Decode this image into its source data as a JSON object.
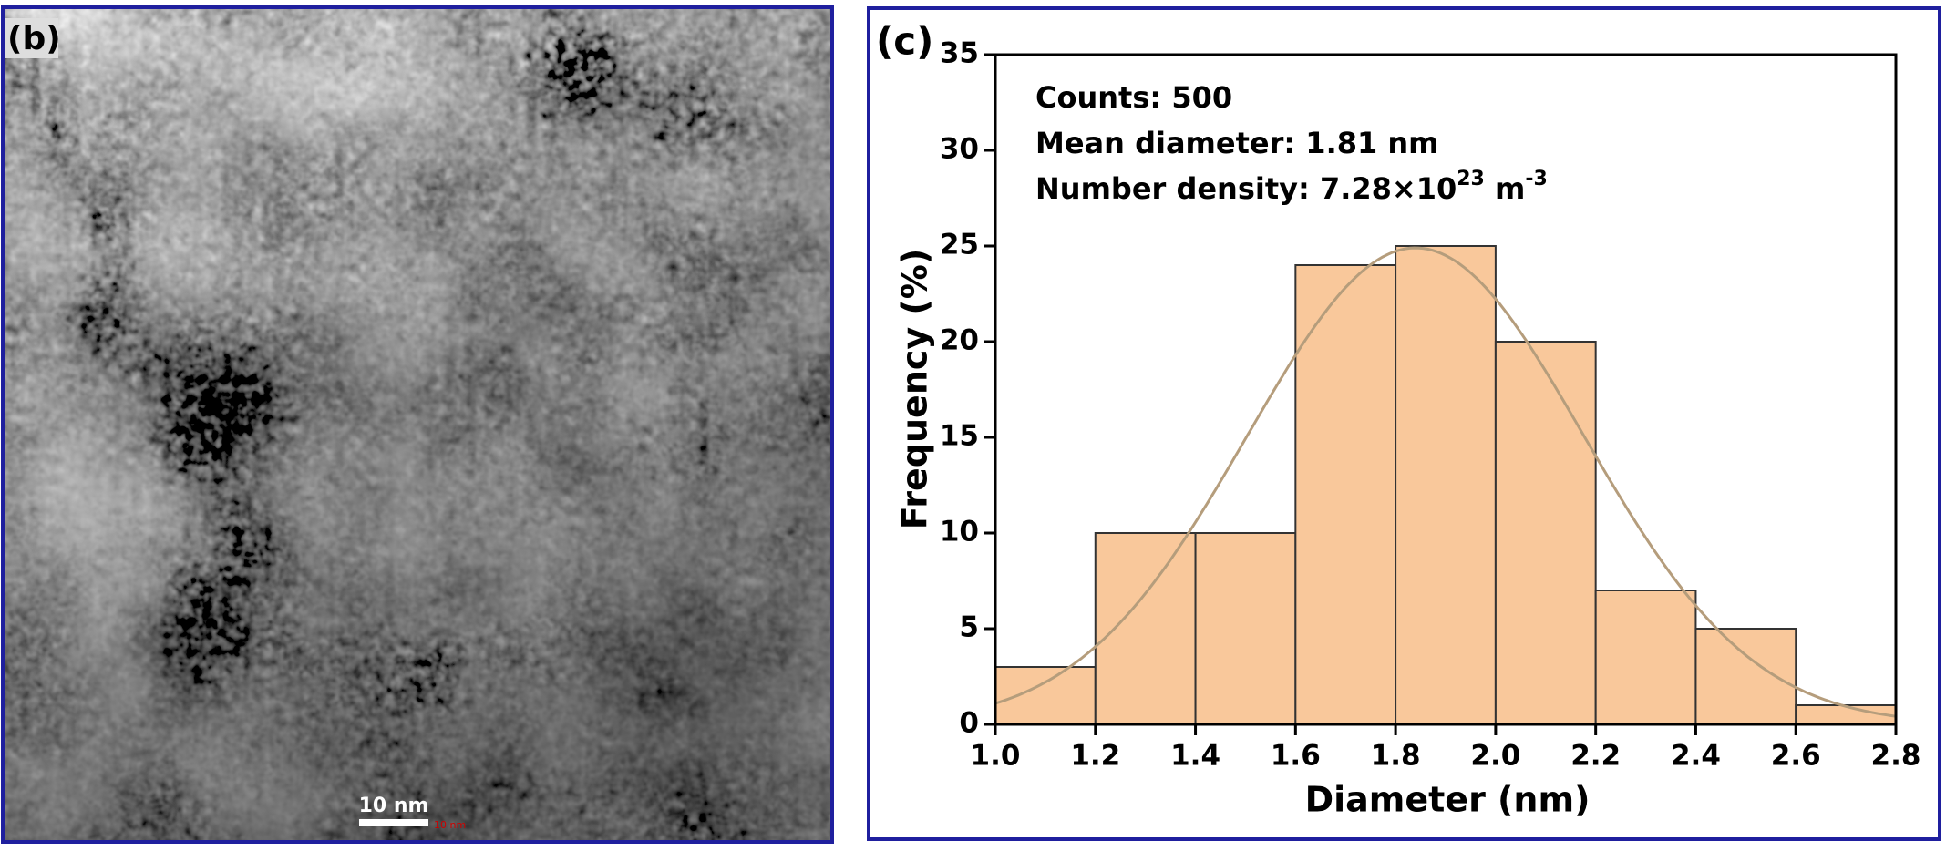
{
  "image_panel": {
    "label": "(b)",
    "scale_bar": "10 nm",
    "scale_bar_small": "10 nm"
  },
  "chart_data": {
    "type": "histogram",
    "panel_label": "(c)",
    "x_label": "Diameter (nm)",
    "y_label": "Frequency (%)",
    "annotations": [
      "Counts: 500",
      "Mean diameter: 1.81 nm",
      [
        "Number density: 7.28×10",
        "23",
        " m",
        "-3"
      ]
    ],
    "bins": [
      1.0,
      1.2,
      1.4,
      1.6,
      1.8,
      2.0,
      2.2,
      2.4,
      2.6,
      2.8
    ],
    "values": [
      3,
      10,
      10,
      24,
      25,
      20,
      7,
      5,
      1
    ],
    "color": "#f9c89b",
    "edge_color": "#333333",
    "fit": {
      "type": "gaussian",
      "center": 1.84,
      "sigma": 0.336,
      "amplitude": 24.9,
      "color": "#b59d7c"
    },
    "xlim": [
      1.0,
      2.8
    ],
    "xticks": [
      {
        "value": 1.0,
        "label": "1.0"
      },
      {
        "value": 1.2,
        "label": "1.2"
      },
      {
        "value": 1.4,
        "label": "1.4"
      },
      {
        "value": 1.6,
        "label": "1.6"
      },
      {
        "value": 1.8,
        "label": "1.8"
      },
      {
        "value": 2.0,
        "label": "2.0"
      },
      {
        "value": 2.2,
        "label": "2.2"
      },
      {
        "value": 2.4,
        "label": "2.4"
      },
      {
        "value": 2.6,
        "label": "2.6"
      },
      {
        "value": 2.8,
        "label": "2.8"
      }
    ],
    "ylim": [
      0,
      35
    ],
    "yticks": [
      0,
      5,
      10,
      15,
      20,
      25,
      30,
      35
    ],
    "grid": false
  }
}
